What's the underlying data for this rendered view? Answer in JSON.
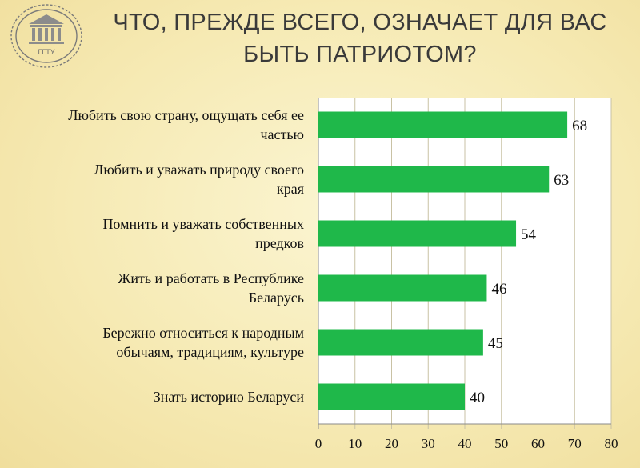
{
  "header": {
    "title_line1": "ЧТО, ПРЕЖДЕ ВСЕГО, ОЗНАЧАЕТ ДЛЯ ВАС",
    "title_line2": "БЫТЬ ПАТРИОТОМ?",
    "logo_text": "ГГТУ",
    "logo_icon": "university-seal-icon"
  },
  "colors": {
    "bar": "#1fb84a",
    "grid": "#c9c2a4",
    "axis": "#8a8a8a",
    "plot_bg": "#ffffff"
  },
  "chart_data": {
    "type": "bar",
    "orientation": "horizontal",
    "title": "ЧТО, ПРЕЖДЕ ВСЕГО, ОЗНАЧАЕТ ДЛЯ ВАС БЫТЬ ПАТРИОТОМ?",
    "categories": [
      [
        "Любить свою страну, ощущать себя ее",
        "частью"
      ],
      [
        "Любить и уважать природу своего",
        "края"
      ],
      [
        "Помнить и уважать собственных",
        "предков"
      ],
      [
        "Жить и работать в Республике",
        "Беларусь"
      ],
      [
        "Бережно относиться к народным",
        "обычаям, традициям, культуре"
      ],
      [
        "Знать историю Беларуси"
      ]
    ],
    "values": [
      68,
      63,
      54,
      46,
      45,
      40
    ],
    "data_labels": [
      "68",
      "63",
      "54",
      "46",
      "45",
      "40"
    ],
    "xlim": [
      0,
      80
    ],
    "xticks": [
      0,
      10,
      20,
      30,
      40,
      50,
      60,
      70,
      80
    ],
    "xtick_labels": [
      "0",
      "10",
      "20",
      "30",
      "40",
      "50",
      "60",
      "70",
      "80"
    ],
    "grid": "vertical",
    "legend": "none"
  }
}
